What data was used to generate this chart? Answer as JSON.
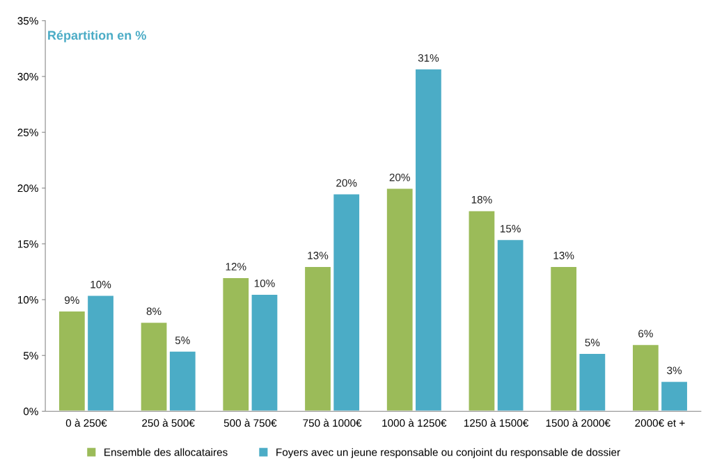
{
  "chart_data": {
    "type": "bar",
    "title": "Répartition en %",
    "categories": [
      "0 à 250€",
      "250 à 500€",
      "500 à 750€",
      "750 à 1000€",
      "1000 à 1250€",
      "1250 à 1500€",
      "1500 à 2000€",
      "2000€ et +"
    ],
    "series": [
      {
        "name": "Ensemble des allocataires",
        "color": "#9bbb59",
        "values": [
          9,
          8,
          12,
          13,
          20,
          18,
          13,
          6
        ],
        "value_labels": [
          "9%",
          "8%",
          "12%",
          "13%",
          "20%",
          "18%",
          "13%",
          "6%"
        ]
      },
      {
        "name": "Foyers avec un jeune responsable ou conjoint du responsable de dossier",
        "color": "#4bacc6",
        "values": [
          10.4,
          5.4,
          10.5,
          19.5,
          30.7,
          15.4,
          5.2,
          2.7
        ],
        "value_labels": [
          "10%",
          "5%",
          "10%",
          "20%",
          "31%",
          "15%",
          "5%",
          "3%"
        ]
      }
    ],
    "ylim": [
      0,
      35
    ],
    "yticks": [
      {
        "value": 0,
        "label": "0%"
      },
      {
        "value": 5,
        "label": "5%"
      },
      {
        "value": 10,
        "label": "10%"
      },
      {
        "value": 15,
        "label": "15%"
      },
      {
        "value": 20,
        "label": "20%"
      },
      {
        "value": 25,
        "label": "25%"
      },
      {
        "value": 30,
        "label": "30%"
      },
      {
        "value": 35,
        "label": "35%"
      }
    ],
    "grid": false,
    "legend": "bottom"
  }
}
